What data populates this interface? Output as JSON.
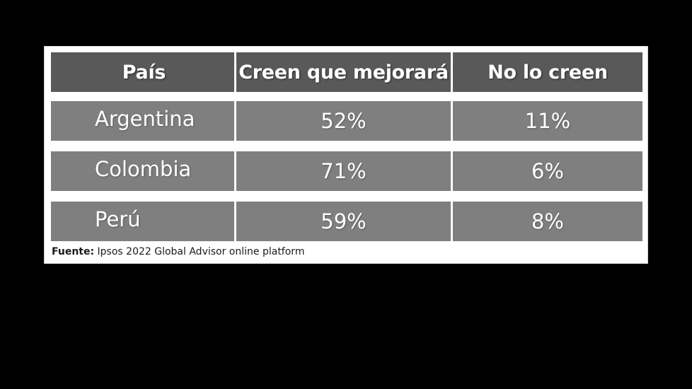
{
  "chart_data": {
    "type": "table",
    "columns": [
      "País",
      "Creen que mejorará",
      "No lo creen"
    ],
    "rows": [
      {
        "pais": "Argentina",
        "mejorara": "52%",
        "no": "11%"
      },
      {
        "pais": "Colombia",
        "mejorara": "71%",
        "no": "6%"
      },
      {
        "pais": "Perú",
        "mejorara": "59%",
        "no": "8%"
      }
    ]
  },
  "source": {
    "label": "Fuente:",
    "text": " Ipsos 2022 Global Advisor online platform"
  },
  "colors": {
    "header": "#595959",
    "cell": "#7f7f7f",
    "background": "#000000",
    "panel": "#ffffff"
  }
}
